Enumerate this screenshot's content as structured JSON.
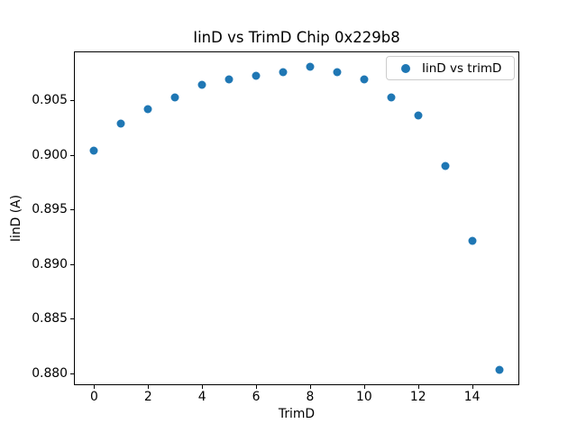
{
  "figure": {
    "title": "IinD vs TrimD Chip 0x229b8",
    "xlabel": "TrimD",
    "ylabel": "IinD (A)",
    "legend": {
      "label": "IinD vs trimD"
    }
  },
  "chart_data": {
    "type": "scatter",
    "title": "IinD vs TrimD Chip 0x229b8",
    "xlabel": "TrimD",
    "ylabel": "IinD (A)",
    "legend_label": "IinD vs trimD",
    "legend_position": "upper right",
    "marker_color": "#1f77b4",
    "grid": false,
    "x": [
      0,
      1,
      2,
      3,
      4,
      5,
      6,
      7,
      8,
      9,
      10,
      11,
      12,
      13,
      14,
      15
    ],
    "y": [
      0.9004,
      0.9029,
      0.9042,
      0.9053,
      0.9064,
      0.9069,
      0.9073,
      0.9076,
      0.9081,
      0.9076,
      0.9069,
      0.9053,
      0.9036,
      0.899,
      0.8921,
      0.8803
    ],
    "xticks": [
      0,
      2,
      4,
      6,
      8,
      10,
      12,
      14
    ],
    "yticks": [
      0.88,
      0.885,
      0.89,
      0.895,
      0.9,
      0.905
    ],
    "xlim": [
      -0.75,
      15.75
    ],
    "ylim": [
      0.8789,
      0.9095
    ]
  }
}
